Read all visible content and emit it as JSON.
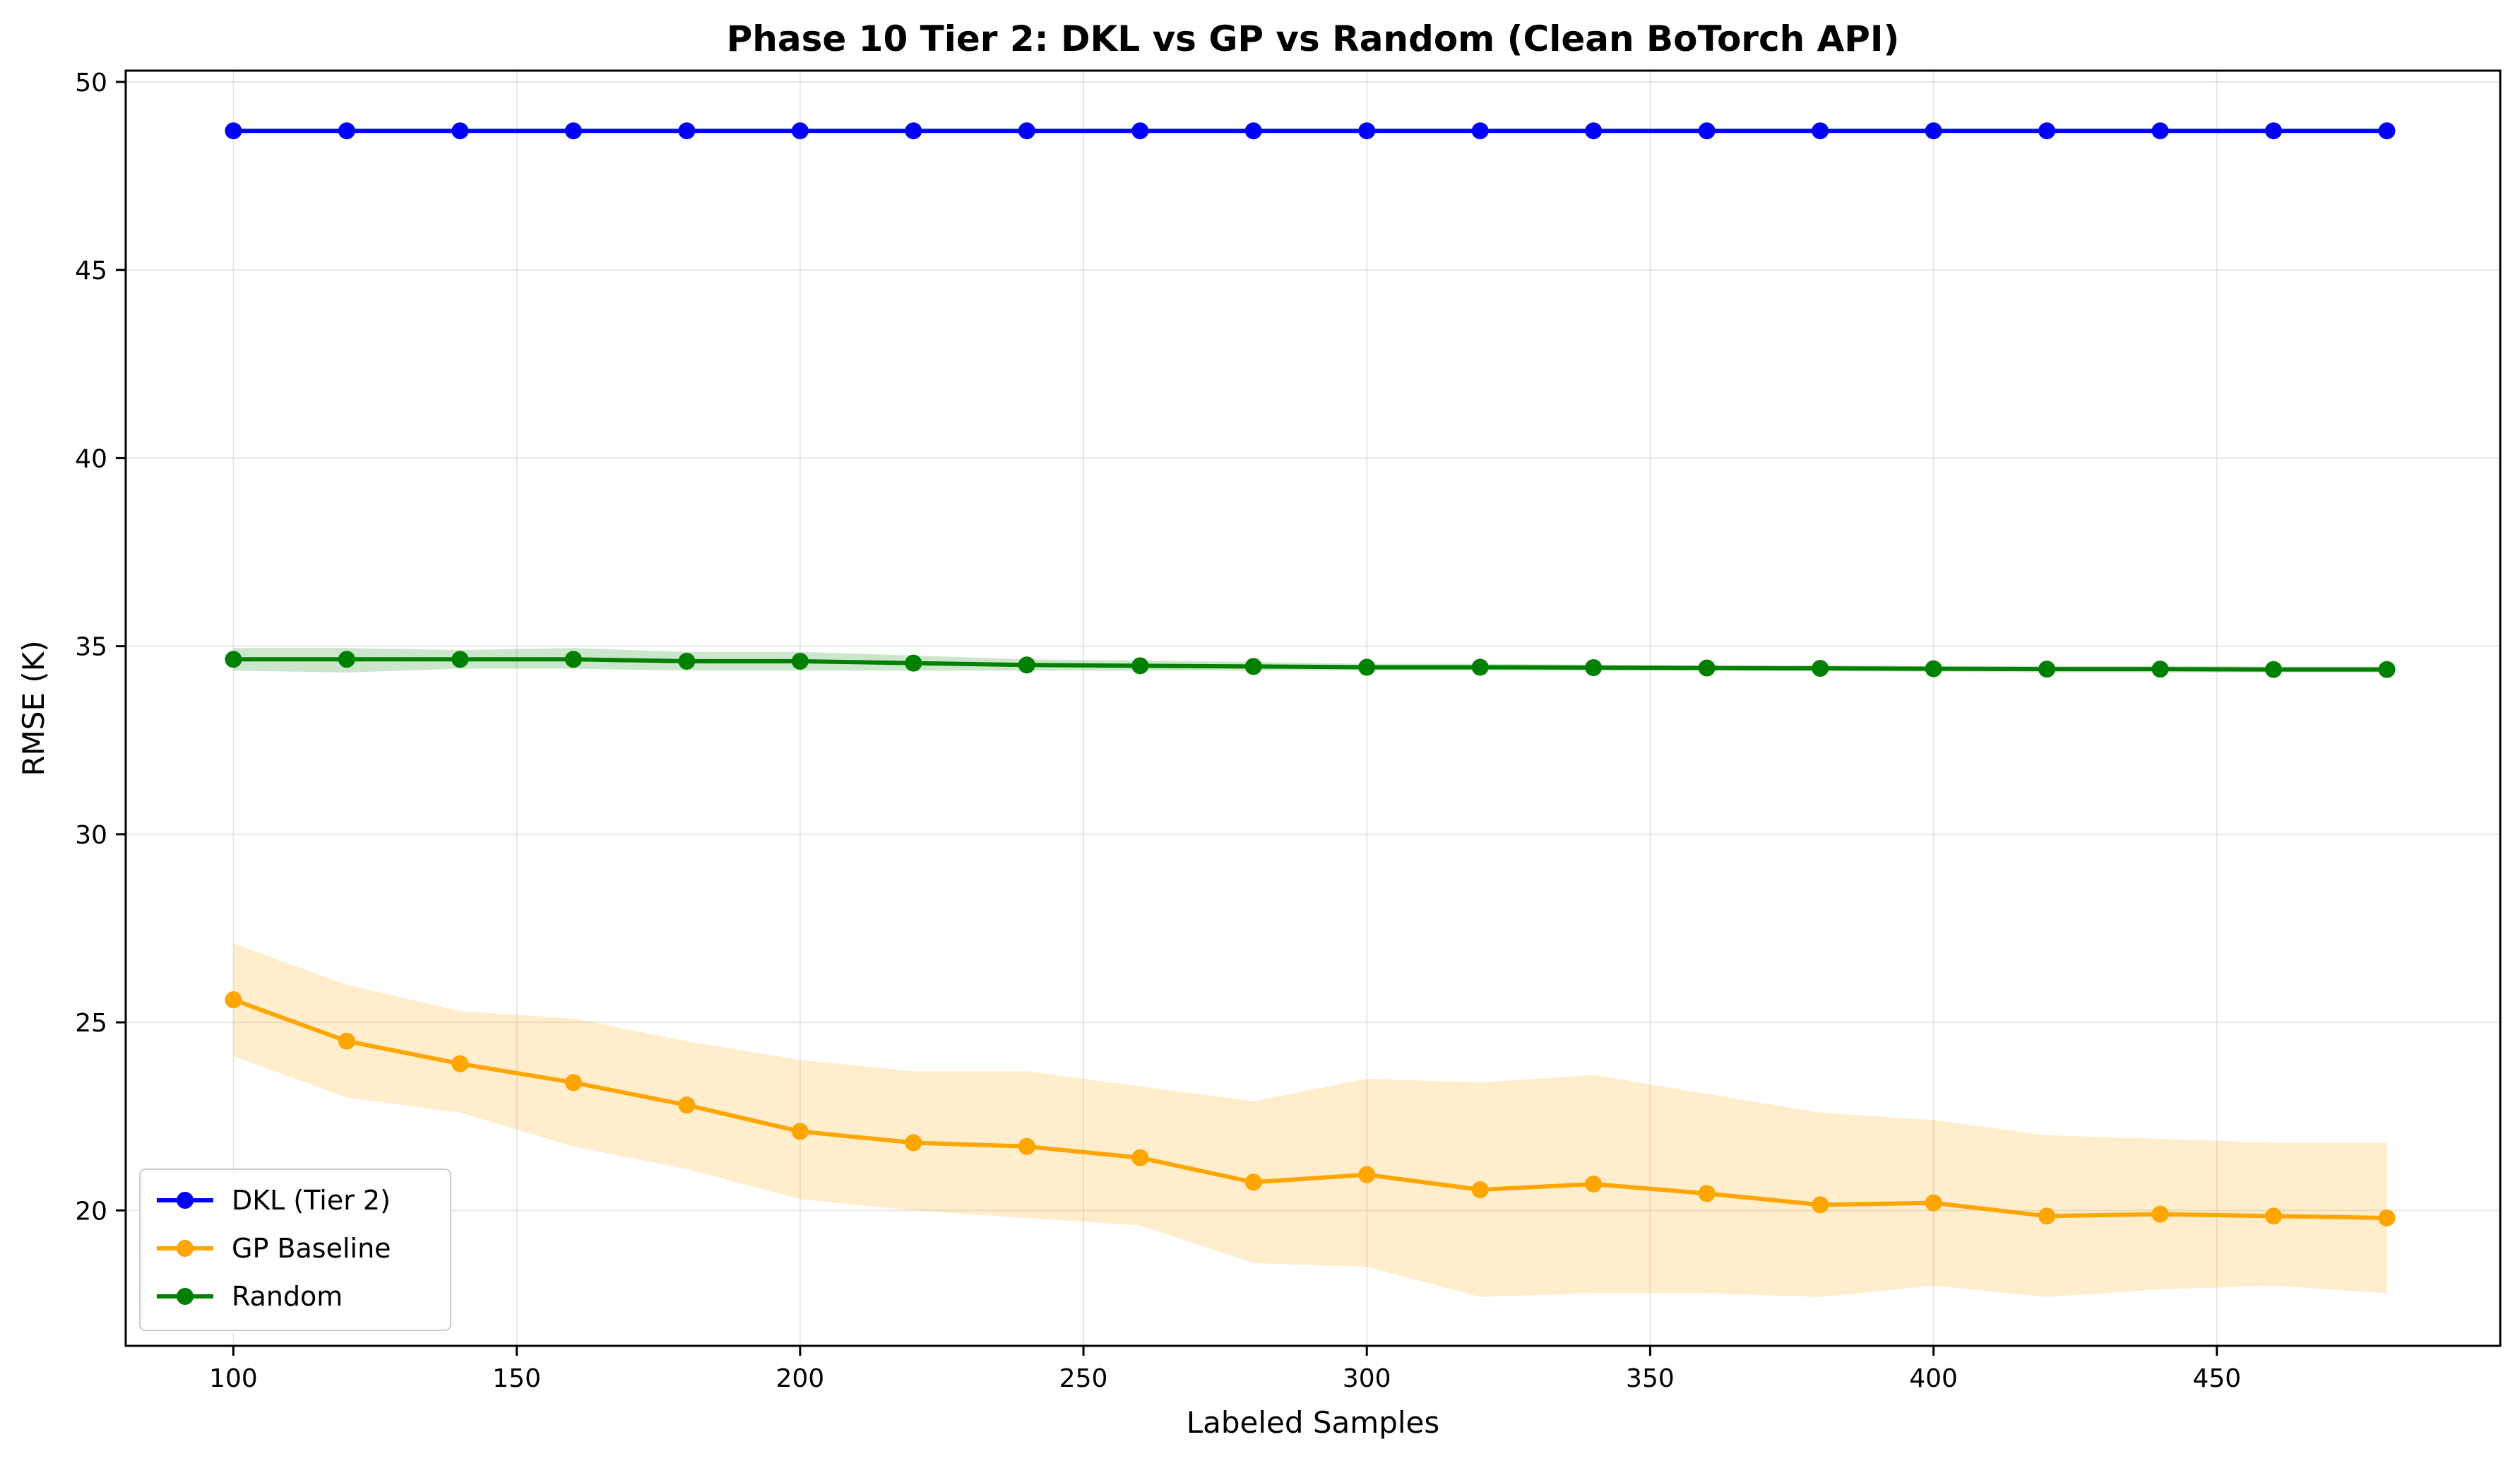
{
  "chart_data": {
    "type": "line",
    "title": "Phase 10 Tier 2: DKL vs GP vs Random (Clean BoTorch API)",
    "xlabel": "Labeled Samples",
    "ylabel": "RMSE (K)",
    "xlim": [
      81,
      500
    ],
    "ylim": [
      16.4,
      50.3
    ],
    "xticks": [
      100,
      150,
      200,
      250,
      300,
      350,
      400,
      450
    ],
    "yticks": [
      20,
      25,
      30,
      35,
      40,
      45,
      50
    ],
    "grid": true,
    "legend_position": "lower-left",
    "x": [
      100,
      120,
      140,
      160,
      180,
      200,
      220,
      240,
      260,
      280,
      300,
      320,
      340,
      360,
      380,
      400,
      420,
      440,
      460,
      480
    ],
    "series": [
      {
        "name": "DKL (Tier 2)",
        "color": "#0000ff",
        "values": [
          48.7,
          48.7,
          48.7,
          48.7,
          48.7,
          48.7,
          48.7,
          48.7,
          48.7,
          48.7,
          48.7,
          48.7,
          48.7,
          48.7,
          48.7,
          48.7,
          48.7,
          48.7,
          48.7,
          48.7
        ]
      },
      {
        "name": "GP Baseline",
        "color": "#ffa500",
        "values": [
          25.6,
          24.5,
          23.9,
          23.4,
          22.8,
          22.1,
          21.8,
          21.7,
          21.4,
          20.75,
          20.95,
          20.55,
          20.7,
          20.45,
          20.15,
          20.2,
          19.85,
          19.9,
          19.85,
          19.8
        ],
        "lower": [
          24.1,
          23.0,
          22.6,
          21.7,
          21.1,
          20.3,
          20.0,
          19.8,
          19.6,
          18.6,
          18.5,
          17.7,
          17.8,
          17.8,
          17.7,
          18.0,
          17.7,
          17.9,
          18.0,
          17.8
        ],
        "upper": [
          27.1,
          26.0,
          25.3,
          25.1,
          24.5,
          24.0,
          23.7,
          23.7,
          23.3,
          22.9,
          23.5,
          23.4,
          23.6,
          23.1,
          22.6,
          22.4,
          22.0,
          21.9,
          21.8,
          21.8
        ]
      },
      {
        "name": "Random",
        "color": "#008000",
        "values": [
          34.65,
          34.65,
          34.65,
          34.65,
          34.6,
          34.6,
          34.55,
          34.5,
          34.48,
          34.46,
          34.44,
          34.44,
          34.43,
          34.42,
          34.41,
          34.4,
          34.39,
          34.39,
          34.38,
          34.38
        ],
        "lower": [
          34.35,
          34.3,
          34.4,
          34.4,
          34.35,
          34.35,
          34.35,
          34.35,
          34.35,
          34.35,
          34.35,
          34.35,
          34.35,
          34.35,
          34.33,
          34.32,
          34.3,
          34.3,
          34.3,
          34.3
        ],
        "upper": [
          34.95,
          34.95,
          34.9,
          34.95,
          34.85,
          34.85,
          34.75,
          34.65,
          34.62,
          34.58,
          34.53,
          34.53,
          34.51,
          34.49,
          34.49,
          34.48,
          34.48,
          34.48,
          34.46,
          34.46
        ]
      }
    ]
  }
}
